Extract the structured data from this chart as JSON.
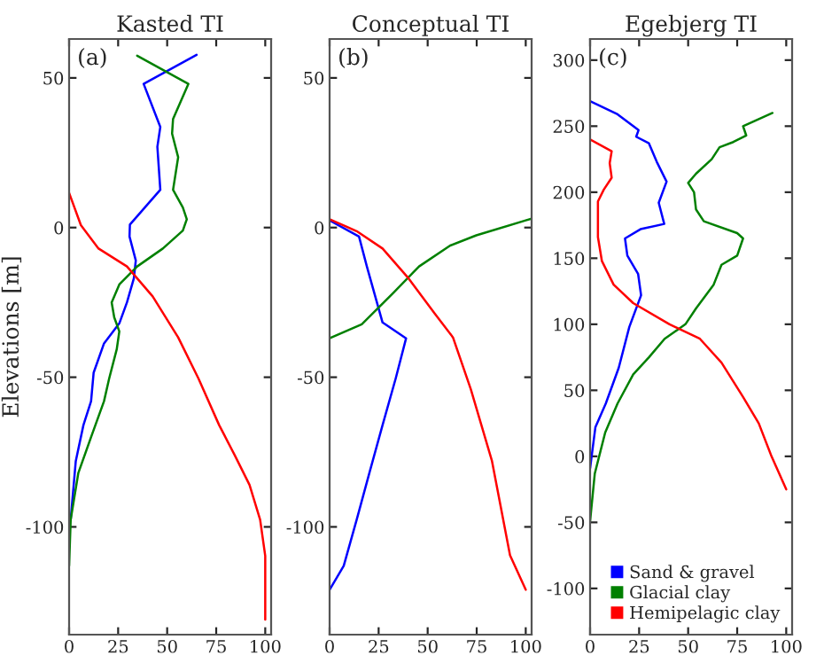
{
  "chart_data": [
    {
      "type": "line",
      "title": "Kasted TI",
      "ylabel": "Elevations [m]",
      "annotations": [
        "(a)"
      ],
      "xlim": [
        0,
        103
      ],
      "xticks": [
        0,
        25,
        50,
        75,
        100
      ],
      "ylim": [
        -136,
        63
      ],
      "yticks": [
        -100,
        -50,
        0,
        50
      ],
      "grid": false,
      "legend": false,
      "series": [
        {
          "color": "#0000ff",
          "x": [
            65,
            38,
            46.5,
            45,
            46.5,
            38.6,
            31,
            30.8,
            34,
            33,
            29.5,
            25.6,
            17.8,
            12.5,
            11.2,
            7.3,
            3.4,
            0.8
          ],
          "values": [
            57.7,
            48,
            33.6,
            27,
            12.6,
            6.7,
            1,
            -3,
            -11,
            -17,
            -25,
            -32,
            -38.7,
            -48.5,
            -58,
            -66,
            -78,
            -97.6
          ]
        },
        {
          "color": "#008000",
          "x": [
            34.7,
            60.8,
            53,
            52.5,
            55.6,
            53,
            58,
            60,
            58,
            47.8,
            34.7,
            25.6,
            21.7,
            23,
            25.6,
            24.3,
            20.4,
            17.8,
            11.2,
            4.7,
            0.8,
            0
          ],
          "values": [
            57.4,
            48,
            36.3,
            31.4,
            23.5,
            12.6,
            6.7,
            2.8,
            -1,
            -7,
            -13,
            -19,
            -25,
            -30,
            -34.7,
            -40.6,
            -50.5,
            -58,
            -70,
            -82,
            -97.6,
            -113
          ]
        },
        {
          "color": "#ff0000",
          "x": [
            0,
            6,
            15,
            29.5,
            42.6,
            55.6,
            66,
            76.5,
            84.4,
            92,
            97.4,
            100,
            100
          ],
          "values": [
            11.6,
            0.8,
            -7,
            -13,
            -23,
            -36.7,
            -50.5,
            -66,
            -76,
            -86,
            -97.6,
            -109.7,
            -131
          ]
        }
      ]
    },
    {
      "type": "line",
      "title": "Conceptual TI",
      "annotations": [
        "(b)"
      ],
      "xlim": [
        0,
        103
      ],
      "xticks": [
        0,
        25,
        50,
        75,
        100
      ],
      "ylim": [
        -136,
        63
      ],
      "yticks": [
        -100,
        -50,
        0,
        50
      ],
      "grid": false,
      "legend": false,
      "series": [
        {
          "color": "#0000ff",
          "x": [
            0,
            15,
            19,
            27,
            39,
            33.7,
            27,
            20.4,
            13.8,
            7.2,
            0
          ],
          "values": [
            2.4,
            -3,
            -13,
            -31.7,
            -37,
            -50.4,
            -66,
            -81.7,
            -97.6,
            -113,
            -121
          ]
        },
        {
          "color": "#008000",
          "x": [
            0,
            16.4,
            32.4,
            45.6,
            61.5,
            74.8,
            100,
            103
          ],
          "values": [
            -37,
            -32.3,
            -21.9,
            -13,
            -6,
            -2.6,
            2.4,
            3
          ]
        },
        {
          "color": "#ff0000",
          "x": [
            0,
            13.8,
            27,
            40.3,
            53.6,
            62.9,
            72,
            82.8,
            92,
            100
          ],
          "values": [
            2.8,
            -1.2,
            -7,
            -17,
            -28.7,
            -36.7,
            -54,
            -78,
            -109.5,
            -121
          ]
        }
      ]
    },
    {
      "type": "line",
      "title": "Egebjerg TI",
      "annotations": [
        "(c)"
      ],
      "xlim": [
        0,
        103
      ],
      "xticks": [
        0,
        25,
        50,
        75,
        100
      ],
      "ylim": [
        -135,
        316
      ],
      "yticks": [
        -100,
        -50,
        0,
        50,
        100,
        150,
        200,
        250,
        300
      ],
      "grid": false,
      "legend": "bottom right",
      "series": [
        {
          "name": "Sand & gravel",
          "color": "#0000ff",
          "x": [
            0,
            14,
            22,
            24.7,
            23.5,
            30,
            34,
            39,
            35,
            37.8,
            25.7,
            17.8,
            19,
            24.5,
            26,
            20,
            14.6,
            8,
            2.7,
            0
          ],
          "values": [
            269,
            259,
            250,
            247,
            242,
            237,
            223,
            208,
            192,
            176,
            172,
            165,
            152,
            138,
            122,
            98,
            67,
            40,
            22,
            -9
          ]
        },
        {
          "name": "Glacial clay",
          "color": "#008000",
          "x": [
            93,
            78,
            79.6,
            73,
            66,
            62,
            54,
            50,
            53,
            54,
            58,
            75,
            78,
            75,
            67,
            63,
            54,
            48.6,
            38,
            30,
            22,
            14,
            7.7,
            2.4,
            0
          ],
          "values": [
            260,
            250,
            243,
            238,
            234,
            225,
            214,
            207,
            200,
            187,
            178,
            169,
            165,
            152,
            145,
            130,
            112,
            100,
            89,
            75,
            62,
            40,
            18,
            -13,
            -49
          ]
        },
        {
          "name": "Hemipelagic clay",
          "color": "#ff0000",
          "x": [
            0,
            11,
            10,
            11,
            7,
            4,
            4,
            6,
            12,
            22,
            40.5,
            56,
            67,
            78,
            86,
            92.5,
            100
          ],
          "values": [
            240,
            231,
            222,
            211,
            202,
            193,
            166,
            148,
            130,
            116,
            100,
            89,
            71,
            45,
            25,
            0,
            -25
          ]
        }
      ]
    }
  ]
}
